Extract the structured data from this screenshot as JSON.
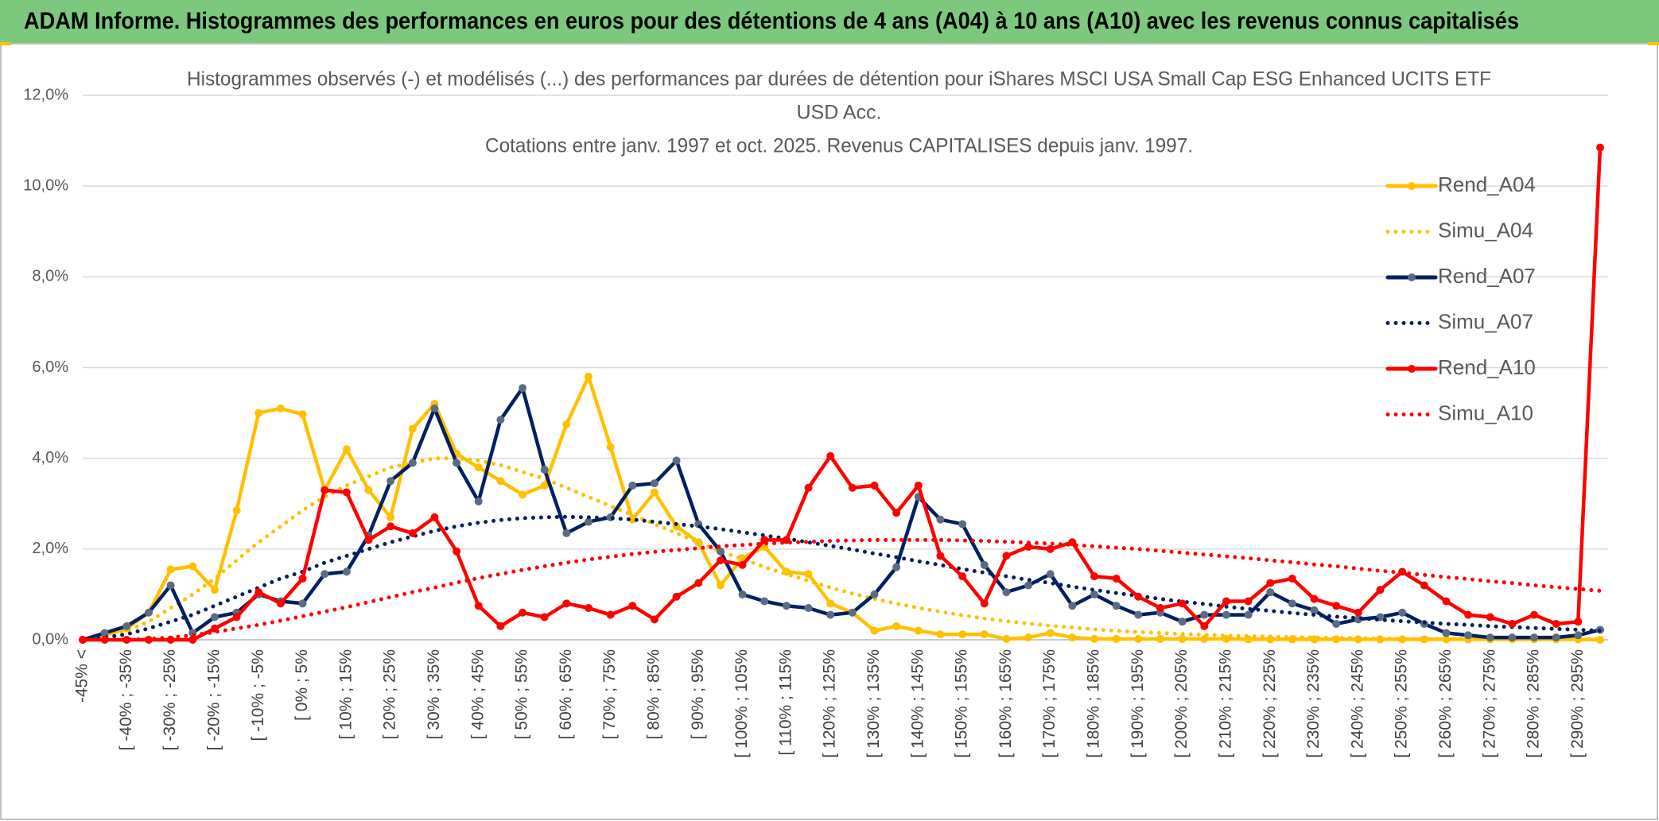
{
  "header": {
    "title": "ADAM Informe. Histogrammes des performances en euros pour des détentions de 4 ans (A04) à 10 ans (A10) avec les revenus connus capitalisés"
  },
  "chart_data": {
    "type": "line",
    "title": [
      "Histogrammes observés (-) et modélisés (...) des performances par durées de détention pour iShares MSCI USA Small Cap ESG Enhanced UCITS ETF",
      "USD Acc.",
      "Cotations entre janv. 1997 et oct. 2025. Revenus CAPITALISES depuis janv. 1997."
    ],
    "categories": [
      "-45% <",
      null,
      "[ -40% ; -35%",
      null,
      "[ -30% ; -25%",
      null,
      "[ -20% ; -15%",
      null,
      "[ -10% ; -5%",
      null,
      "[ 0% ; 5%",
      null,
      "[ 10% ; 15%",
      null,
      "[ 20% ; 25%",
      null,
      "[ 30% ; 35%",
      null,
      "[ 40% ; 45%",
      null,
      "[ 50% ; 55%",
      null,
      "[ 60% ; 65%",
      null,
      "[ 70% ; 75%",
      null,
      "[ 80% ; 85%",
      null,
      "[ 90% ; 95%",
      null,
      "[ 100% ; 105%",
      null,
      "[ 110% ; 115%",
      null,
      "[ 120% ; 125%",
      null,
      "[ 130% ; 135%",
      null,
      "[ 140% ; 145%",
      null,
      "[ 150% ; 155%",
      null,
      "[ 160% ; 165%",
      null,
      "[ 170% ; 175%",
      null,
      "[ 180% ; 185%",
      null,
      "[ 190% ; 195%",
      null,
      "[ 200% ; 205%",
      null,
      "[ 210% ; 215%",
      null,
      "[ 220% ; 225%",
      null,
      "[ 230% ; 235%",
      null,
      "[ 240% ; 245%",
      null,
      "[ 250% ; 255%",
      null,
      "[ 260% ; 265%",
      null,
      "[ 270% ; 275%",
      null,
      "[ 280% ; 285%",
      null,
      "[ 290% ; 295%",
      null
    ],
    "series": [
      {
        "name": "Rend_A04",
        "color": "#FFC000",
        "style": "solid",
        "markers": true,
        "values": [
          0,
          0.1,
          0.25,
          0.6,
          1.55,
          1.62,
          1.1,
          2.85,
          5.0,
          5.1,
          4.97,
          3.3,
          4.2,
          3.3,
          2.7,
          4.65,
          5.2,
          4.1,
          3.8,
          3.5,
          3.2,
          3.4,
          4.75,
          5.8,
          4.25,
          2.65,
          3.25,
          2.5,
          2.15,
          1.2,
          1.8,
          2.05,
          1.5,
          1.45,
          0.8,
          0.6,
          0.2,
          0.3,
          0.2,
          0.12,
          0.12,
          0.12,
          0.02,
          0.05,
          0.15,
          0.05,
          0.02,
          0.02,
          0.02,
          0.02,
          0.02,
          0.02,
          0.02,
          0.01,
          0.01,
          0.01,
          0.01,
          0.01,
          0.01,
          0.01,
          0.01,
          0.01,
          0.01,
          0.01,
          0.01,
          0.01,
          0.01,
          0.01,
          0.01,
          0
        ]
      },
      {
        "name": "Simu_A04",
        "color": "#FFC000",
        "style": "dotted",
        "markers": false,
        "values": [
          0,
          0.1,
          0.2,
          0.4,
          0.7,
          1.0,
          1.35,
          1.75,
          2.15,
          2.5,
          2.85,
          3.15,
          3.4,
          3.6,
          3.8,
          3.9,
          4.0,
          4.0,
          3.95,
          3.85,
          3.7,
          3.55,
          3.35,
          3.15,
          2.95,
          2.75,
          2.55,
          2.35,
          2.15,
          1.95,
          1.78,
          1.6,
          1.45,
          1.3,
          1.15,
          1.02,
          0.9,
          0.8,
          0.7,
          0.62,
          0.54,
          0.47,
          0.41,
          0.36,
          0.31,
          0.27,
          0.23,
          0.2,
          0.17,
          0.15,
          0.13,
          0.11,
          0.09,
          0.08,
          0.07,
          0.06,
          0.05,
          0.04,
          0.035,
          0.03,
          0.02,
          0.02,
          0.02,
          0.02,
          0.02,
          0.01,
          0.01,
          0.01,
          0.01,
          0.01
        ]
      },
      {
        "name": "Rend_A07",
        "color": "#002060",
        "marker_color": "#5B6B82",
        "style": "solid",
        "markers": true,
        "values": [
          0,
          0.15,
          0.3,
          0.6,
          1.2,
          0.15,
          0.5,
          0.6,
          1.0,
          0.85,
          0.8,
          1.45,
          1.5,
          2.3,
          3.5,
          3.9,
          5.1,
          3.9,
          3.05,
          4.85,
          5.55,
          3.75,
          2.35,
          2.6,
          2.7,
          3.4,
          3.45,
          3.95,
          2.55,
          1.95,
          1.0,
          0.85,
          0.75,
          0.7,
          0.55,
          0.6,
          1.0,
          1.6,
          3.15,
          2.65,
          2.55,
          1.65,
          1.05,
          1.2,
          1.45,
          0.75,
          1.0,
          0.75,
          0.55,
          0.6,
          0.4,
          0.55,
          0.55,
          0.55,
          1.05,
          0.8,
          0.65,
          0.35,
          0.45,
          0.5,
          0.6,
          0.35,
          0.15,
          0.1,
          0.05,
          0.05,
          0.05,
          0.05,
          0.1,
          0.22
        ]
      },
      {
        "name": "Simu_A07",
        "color": "#002060",
        "style": "dotted",
        "markers": false,
        "values": [
          0,
          0.05,
          0.12,
          0.25,
          0.4,
          0.55,
          0.75,
          0.95,
          1.15,
          1.35,
          1.5,
          1.7,
          1.85,
          2.0,
          2.15,
          2.28,
          2.4,
          2.5,
          2.58,
          2.64,
          2.68,
          2.7,
          2.71,
          2.7,
          2.68,
          2.65,
          2.6,
          2.55,
          2.5,
          2.44,
          2.37,
          2.3,
          2.23,
          2.15,
          2.07,
          1.99,
          1.9,
          1.82,
          1.73,
          1.65,
          1.56,
          1.48,
          1.4,
          1.32,
          1.25,
          1.17,
          1.1,
          1.03,
          0.97,
          0.9,
          0.84,
          0.79,
          0.73,
          0.68,
          0.64,
          0.59,
          0.55,
          0.51,
          0.48,
          0.44,
          0.41,
          0.38,
          0.35,
          0.33,
          0.3,
          0.28,
          0.26,
          0.24,
          0.22,
          0.2
        ]
      },
      {
        "name": "Rend_A10",
        "color": "#FF0000",
        "style": "solid",
        "markers": true,
        "values": [
          0,
          0,
          0,
          0,
          0,
          0,
          0.25,
          0.5,
          1.05,
          0.8,
          1.35,
          3.3,
          3.25,
          2.2,
          2.5,
          2.35,
          2.7,
          1.95,
          0.75,
          0.3,
          0.6,
          0.5,
          0.8,
          0.7,
          0.55,
          0.75,
          0.45,
          0.95,
          1.25,
          1.75,
          1.65,
          2.2,
          2.2,
          3.35,
          4.05,
          3.35,
          3.4,
          2.8,
          3.4,
          1.85,
          1.4,
          0.8,
          1.85,
          2.05,
          2.0,
          2.15,
          1.4,
          1.35,
          0.95,
          0.7,
          0.8,
          0.3,
          0.85,
          0.85,
          1.25,
          1.35,
          0.9,
          0.75,
          0.6,
          1.1,
          1.5,
          1.2,
          0.85,
          0.55,
          0.5,
          0.35,
          0.55,
          0.35,
          0.4,
          10.85
        ]
      },
      {
        "name": "Simu_A10",
        "color": "#FF0000",
        "style": "dotted",
        "markers": false,
        "values": [
          0,
          0,
          0,
          0.02,
          0.05,
          0.1,
          0.17,
          0.25,
          0.33,
          0.42,
          0.52,
          0.62,
          0.72,
          0.83,
          0.94,
          1.05,
          1.15,
          1.26,
          1.36,
          1.45,
          1.54,
          1.62,
          1.7,
          1.77,
          1.83,
          1.89,
          1.94,
          1.98,
          2.02,
          2.06,
          2.09,
          2.12,
          2.14,
          2.16,
          2.18,
          2.19,
          2.2,
          2.2,
          2.2,
          2.2,
          2.19,
          2.18,
          2.16,
          2.14,
          2.12,
          2.09,
          2.06,
          2.03,
          2.0,
          1.96,
          1.92,
          1.88,
          1.84,
          1.8,
          1.75,
          1.71,
          1.66,
          1.62,
          1.57,
          1.52,
          1.48,
          1.43,
          1.38,
          1.34,
          1.29,
          1.25,
          1.2,
          1.16,
          1.12,
          1.08
        ]
      }
    ],
    "ylim": [
      0,
      12
    ],
    "yticks": [
      {
        "value": 0,
        "label": "0,0%"
      },
      {
        "value": 2,
        "label": "2,0%"
      },
      {
        "value": 4,
        "label": "4,0%"
      },
      {
        "value": 6,
        "label": "6,0%"
      },
      {
        "value": 8,
        "label": "8,0%"
      },
      {
        "value": 10,
        "label": "10,0%"
      },
      {
        "value": 12,
        "label": "12,0%"
      }
    ],
    "grid": true,
    "legend": "right"
  }
}
